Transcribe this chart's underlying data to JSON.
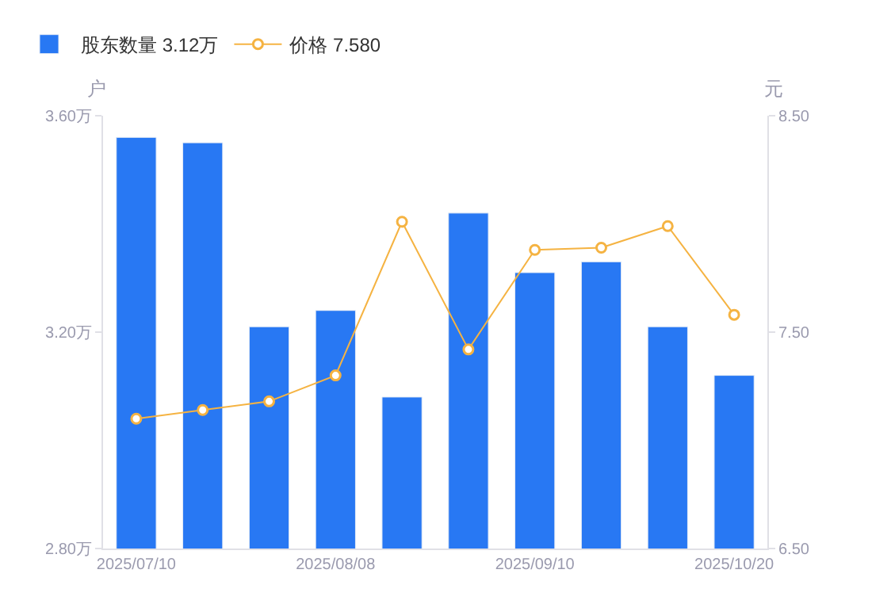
{
  "chart_data": {
    "type": "bar",
    "categories": [
      "2025/07/10",
      null,
      null,
      "2025/08/08",
      null,
      null,
      "2025/09/10",
      null,
      null,
      "2025/10/20"
    ],
    "series": [
      {
        "name": "股东数量 3.12万",
        "color": "#2878f3",
        "values": [
          3.56,
          3.55,
          3.21,
          3.24,
          3.08,
          3.42,
          3.31,
          3.33,
          3.21,
          3.12
        ]
      },
      {
        "name": "价格 7.580",
        "type": "line",
        "axis": "y2",
        "color": "#f5b342",
        "marker": "circle",
        "values": [
          7.1,
          7.14,
          7.18,
          7.3,
          8.01,
          7.42,
          7.88,
          7.89,
          7.99,
          7.58
        ]
      }
    ],
    "ylabel": "户",
    "y2label": "元",
    "ylim": [
      2.8,
      3.6
    ],
    "yticks": [
      {
        "value": 2.8,
        "label": "2.80万"
      },
      {
        "value": 3.2,
        "label": "3.20万"
      },
      {
        "value": 3.6,
        "label": "3.60万"
      }
    ],
    "y2lim": [
      6.5,
      8.5
    ],
    "y2ticks": [
      {
        "value": 6.5,
        "label": "6.50"
      },
      {
        "value": 7.5,
        "label": "7.50"
      },
      {
        "value": 8.5,
        "label": "8.50"
      }
    ],
    "legend": "top left"
  }
}
